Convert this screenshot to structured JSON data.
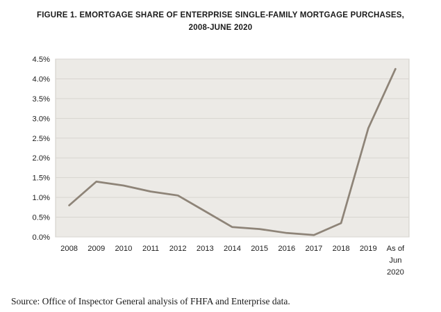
{
  "title": {
    "line1": "FIGURE 1. EMORTGAGE SHARE OF ENTERPRISE SINGLE-FAMILY MORTGAGE PURCHASES,",
    "line2": "2008-JUNE 2020"
  },
  "source": "Source: Office of Inspector General analysis of FHFA and Enterprise data.",
  "colors": {
    "line": "#8E8478",
    "plot_bg": "#ECEAE6",
    "gridline": "#D8D5D0",
    "plot_border": "#CFCCC6",
    "text": "#1c1c1c"
  },
  "chart_data": {
    "type": "line",
    "title": "FIGURE 1. EMORTGAGE SHARE OF ENTERPRISE SINGLE-FAMILY MORTGAGE PURCHASES, 2008-JUNE 2020",
    "categories": [
      "2008",
      "2009",
      "2010",
      "2011",
      "2012",
      "2013",
      "2014",
      "2015",
      "2016",
      "2017",
      "2018",
      "2019",
      "As of\nJun\n2020"
    ],
    "values": [
      0.8,
      1.4,
      1.3,
      1.15,
      1.05,
      0.65,
      0.25,
      0.2,
      0.1,
      0.05,
      0.35,
      2.75,
      4.25
    ],
    "xlabel": "",
    "ylabel": "",
    "ylim": [
      0,
      4.5
    ],
    "ytick_step": 0.5,
    "ytick_suffix": "%",
    "grid": true,
    "legend": false
  }
}
